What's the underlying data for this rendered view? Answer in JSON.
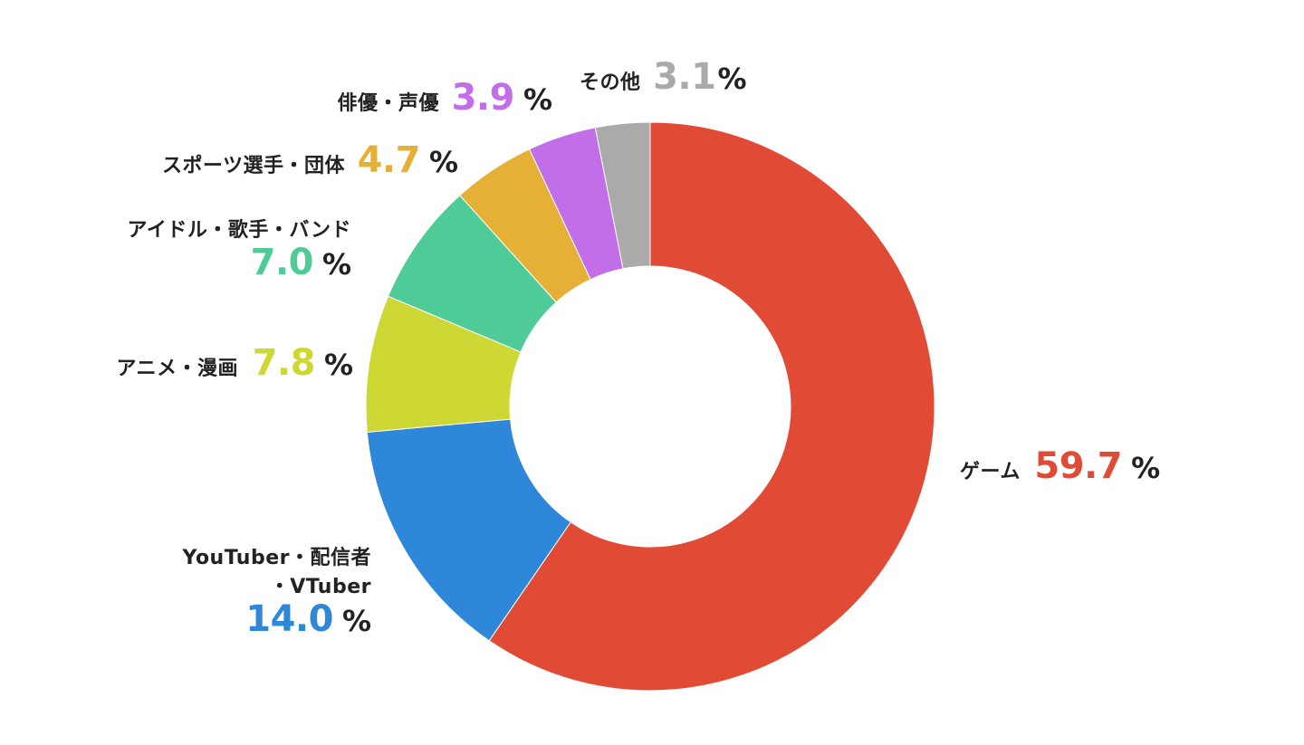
{
  "chart_data": {
    "type": "pie",
    "donut": true,
    "title": "",
    "slices": [
      {
        "name": "ゲーム",
        "value": 59.7,
        "color": "#e14b35"
      },
      {
        "name": "YouTuber・配信者・VTuber",
        "value": 14.0,
        "color": "#2e87d8"
      },
      {
        "name": "アニメ・漫画",
        "value": 7.8,
        "color": "#cdd834"
      },
      {
        "name": "アイドル・歌手・バンド",
        "value": 7.0,
        "color": "#4ecb96"
      },
      {
        "name": "スポーツ選手・団体",
        "value": 4.7,
        "color": "#e5b035"
      },
      {
        "name": "俳優・声優",
        "value": 3.9,
        "color": "#c26ee9"
      },
      {
        "name": "その他",
        "value": 3.1,
        "color": "#aaaaaa"
      }
    ]
  },
  "labels": {
    "game": {
      "name": "ゲーム",
      "value": "59.7",
      "unit": "%"
    },
    "youtuber": {
      "name_line1": "YouTuber・配信者",
      "name_line2": "・VTuber",
      "value": "14.0",
      "unit": "%"
    },
    "anime": {
      "name": "アニメ・漫画",
      "value": "7.8",
      "unit": "%"
    },
    "idol": {
      "name": "アイドル・歌手・バンド",
      "value": "7.0",
      "unit": "%"
    },
    "sports": {
      "name": "スポーツ選手・団体",
      "value": "4.7",
      "unit": "%"
    },
    "actor": {
      "name": "俳優・声優",
      "value": "3.9",
      "unit": "%"
    },
    "other": {
      "name": "その他",
      "value": "3.1",
      "unit": "%"
    }
  }
}
